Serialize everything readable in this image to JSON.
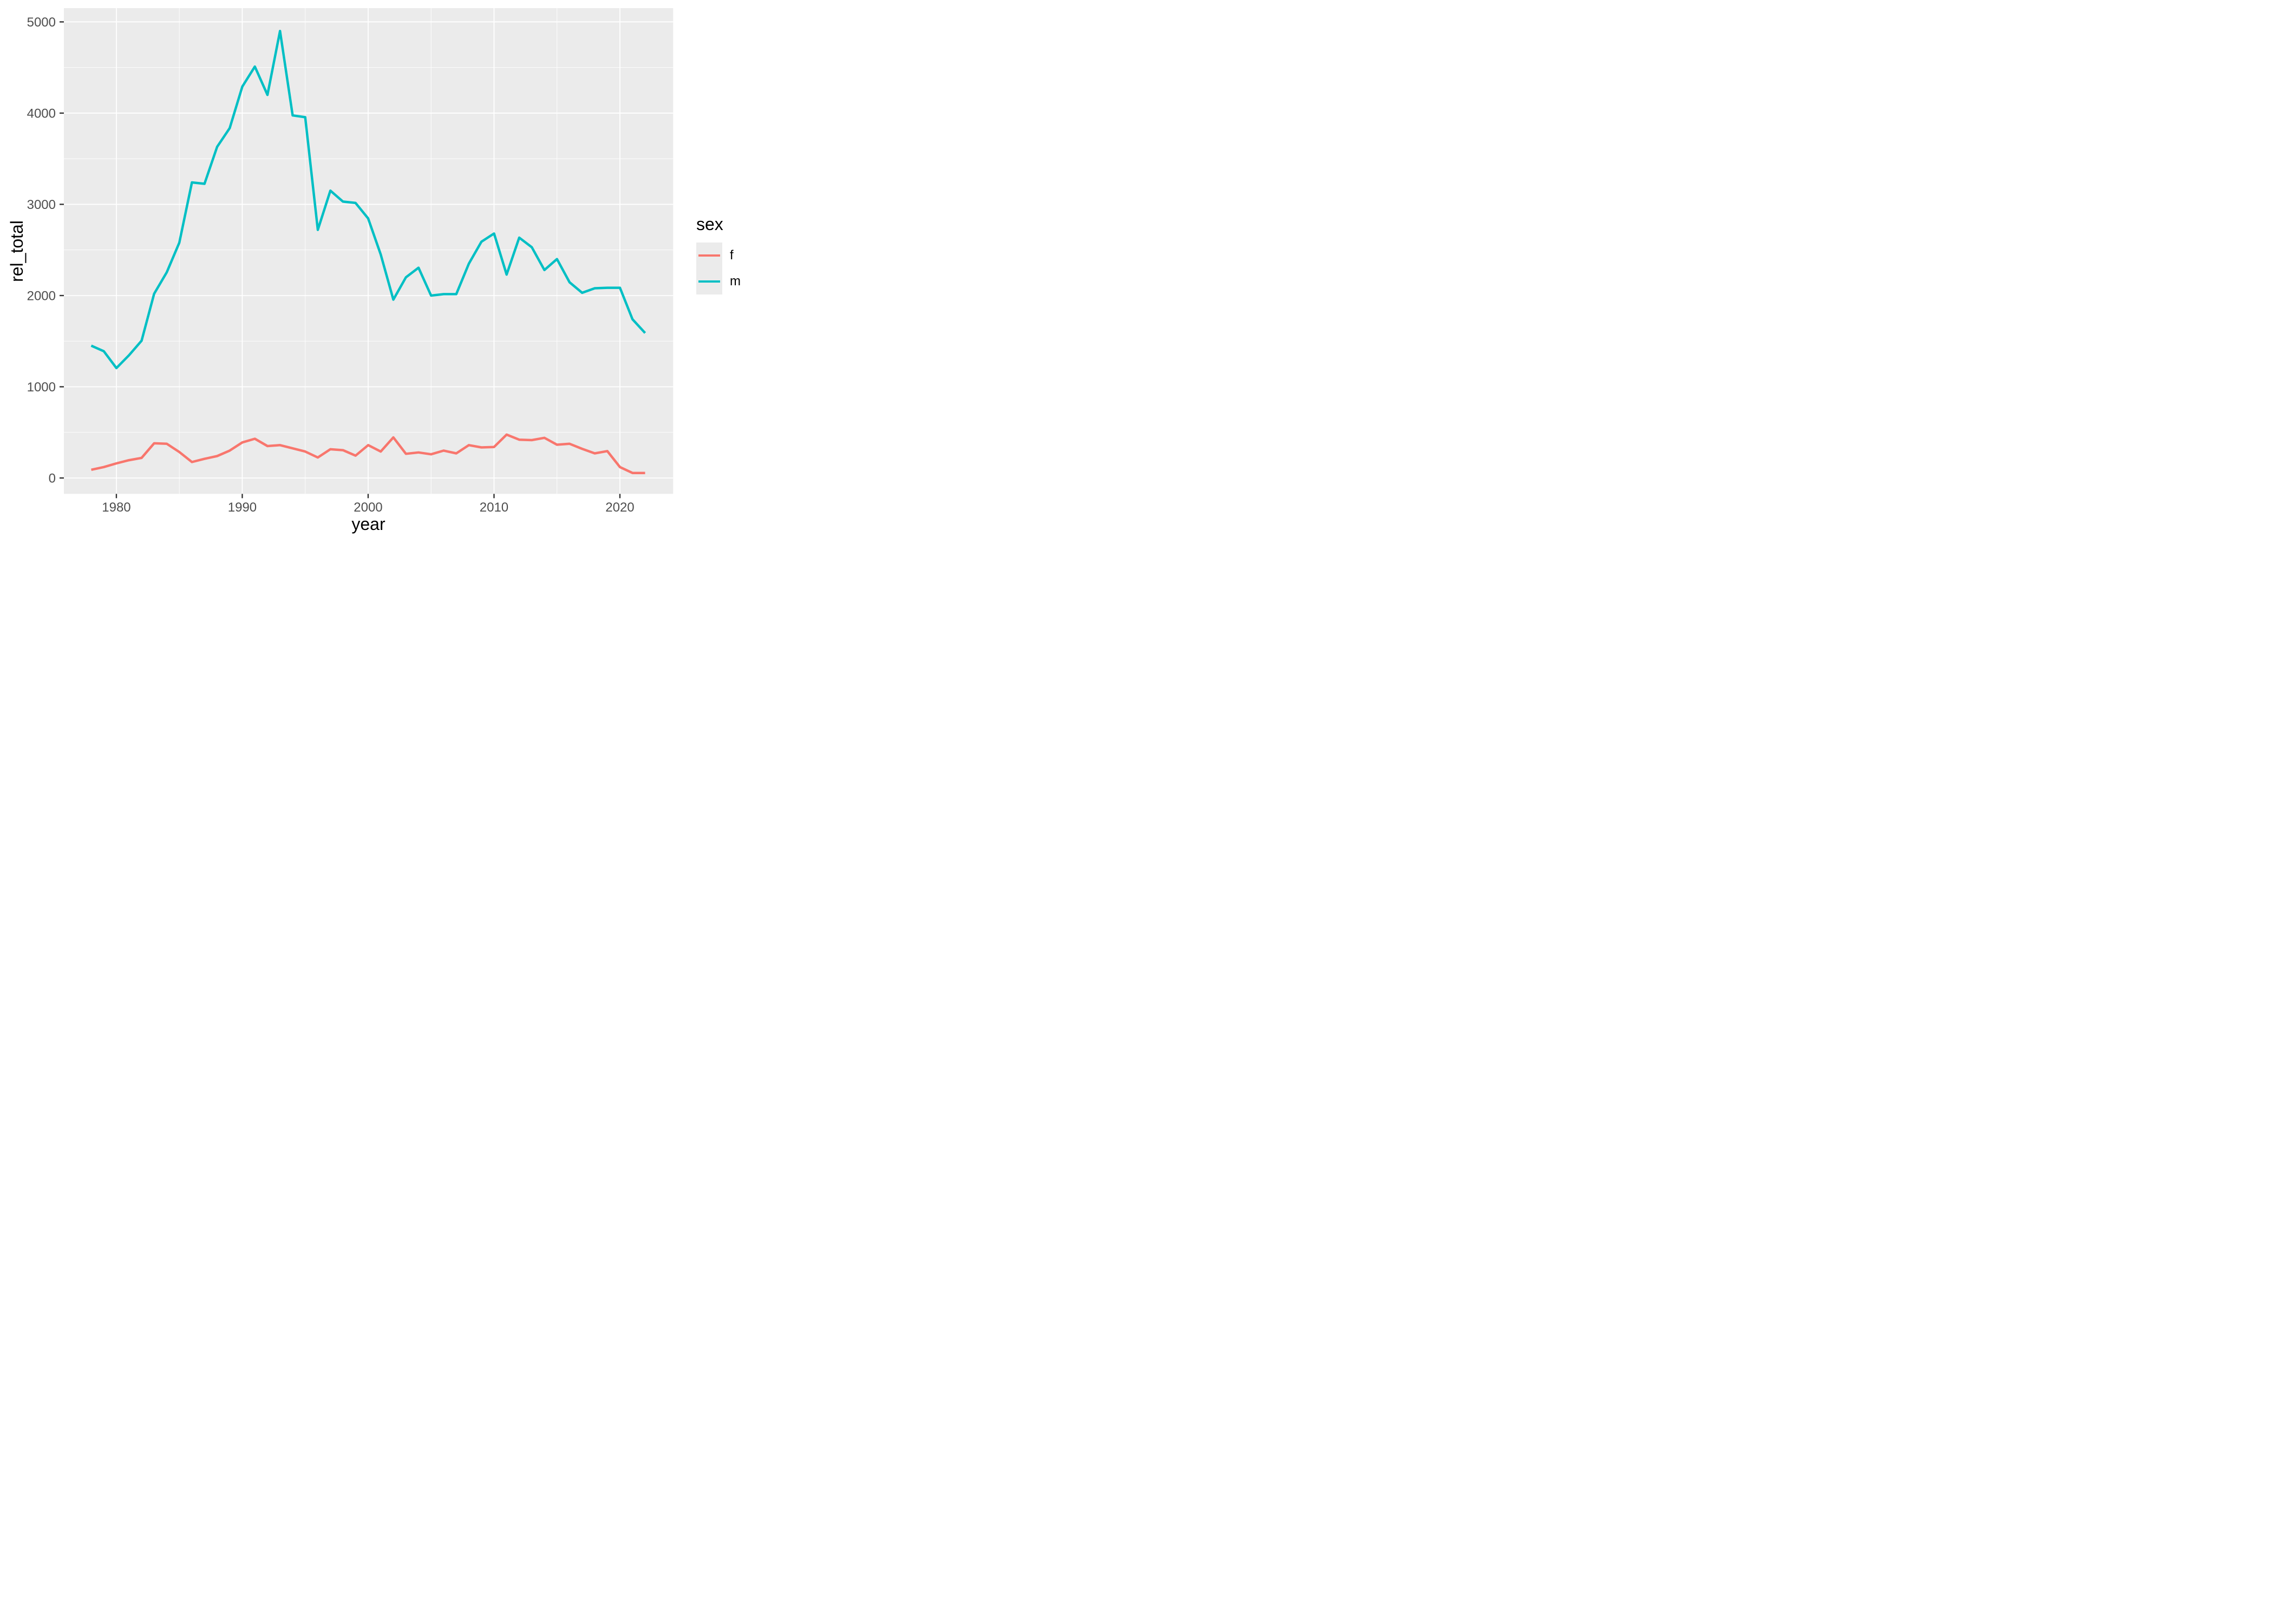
{
  "figure": {
    "background": "#FFFFFF",
    "panel_background": "#EBEBEB",
    "grid_color": "#FFFFFF",
    "tick_mark_color": "#333333",
    "tick_label_color": "#4D4D4D",
    "axis_title_color": "#000000"
  },
  "chart_data": {
    "type": "line",
    "title": "",
    "xlabel": "year",
    "ylabel": "rel_total",
    "grid": true,
    "legend": {
      "title": "sex",
      "position": "right",
      "entries": [
        {
          "label": "f",
          "color": "#F8766D"
        },
        {
          "label": "m",
          "color": "#00BFC4"
        }
      ]
    },
    "x_ticks": [
      1980,
      1990,
      2000,
      2010,
      2020
    ],
    "x_minor_ticks": [
      1985,
      1995,
      2005,
      2015
    ],
    "y_ticks": [
      0,
      1000,
      2000,
      3000,
      4000,
      5000
    ],
    "y_minor_ticks": [
      500,
      1500,
      2500,
      3500,
      4500
    ],
    "xlim": [
      1975.83,
      2024.23
    ],
    "ylim": [
      -174,
      5151
    ],
    "x": [
      1978,
      1979,
      1980,
      1981,
      1982,
      1983,
      1984,
      1985,
      1986,
      1987,
      1988,
      1989,
      1990,
      1991,
      1992,
      1993,
      1994,
      1995,
      1996,
      1997,
      1998,
      1999,
      2000,
      2001,
      2002,
      2003,
      2004,
      2005,
      2006,
      2007,
      2008,
      2009,
      2010,
      2011,
      2012,
      2013,
      2014,
      2015,
      2016,
      2017,
      2018,
      2019,
      2020,
      2021,
      2022
    ],
    "series": [
      {
        "name": "f",
        "color": "#F8766D",
        "values": [
          90,
          120,
          160,
          195,
          220,
          380,
          375,
          285,
          175,
          210,
          240,
          300,
          390,
          430,
          350,
          360,
          325,
          290,
          225,
          315,
          305,
          245,
          360,
          290,
          445,
          265,
          280,
          260,
          300,
          270,
          360,
          335,
          340,
          475,
          420,
          415,
          440,
          365,
          375,
          320,
          270,
          295,
          120,
          55,
          55
        ]
      },
      {
        "name": "m",
        "color": "#00BFC4",
        "values": [
          1450,
          1390,
          1205,
          1345,
          1505,
          2020,
          2255,
          2580,
          3240,
          3225,
          3630,
          3835,
          4290,
          4510,
          4200,
          4900,
          3975,
          3955,
          2720,
          3150,
          3030,
          3015,
          2845,
          2450,
          1955,
          2200,
          2305,
          2000,
          2015,
          2015,
          2350,
          2590,
          2680,
          2230,
          2635,
          2530,
          2280,
          2400,
          2145,
          2030,
          2080,
          2085,
          2085,
          1740,
          1590
        ]
      }
    ]
  }
}
